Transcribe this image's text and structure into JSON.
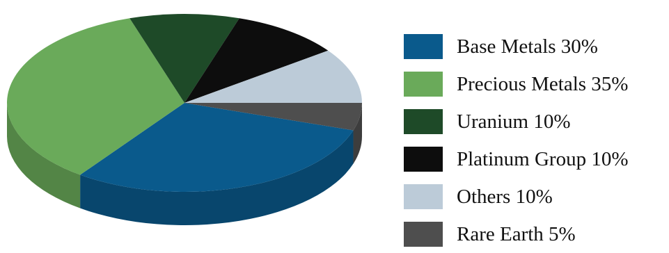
{
  "chart_data": {
    "type": "pie",
    "title": "",
    "categories": [
      "Base Metals",
      "Precious Metals",
      "Uranium",
      "Platinum Group",
      "Others",
      "Rare Earth"
    ],
    "values": [
      30,
      35,
      10,
      10,
      10,
      5
    ],
    "legend": {
      "placement": "right",
      "entries": [
        "Base Metals 30%",
        "Precious Metals 35%",
        "Uranium 10%",
        "Platinum Group 10%",
        "Others 10%",
        "Rare Earth 5%"
      ]
    },
    "colors": [
      "#0a5a8c",
      "#6aaa5a",
      "#1e4a28",
      "#0d0d0d",
      "#bccbd8",
      "#4e4e4e"
    ]
  }
}
